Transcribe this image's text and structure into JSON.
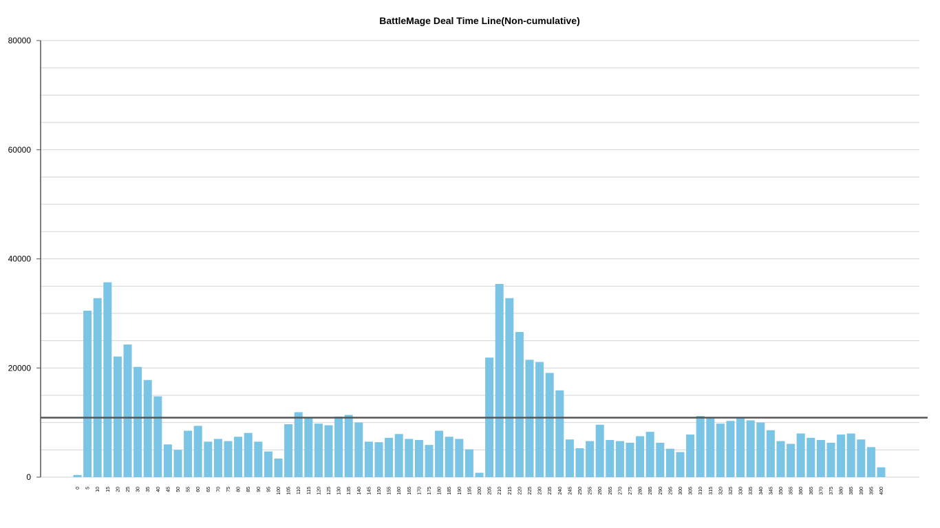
{
  "chart_data": {
    "type": "bar",
    "title": "BattleMage Deal Time Line(Non-cumulative)",
    "xlabel": "",
    "ylabel": "",
    "ylim": [
      0,
      80000
    ],
    "yticks": [
      0,
      20000,
      40000,
      60000,
      80000
    ],
    "grid": true,
    "bar_color": "#7AC4E6",
    "reference_line": {
      "value": 10900,
      "color": "#555555"
    },
    "categories": [
      "0",
      "5",
      "10",
      "15",
      "20",
      "25",
      "30",
      "35",
      "40",
      "45",
      "50",
      "55",
      "60",
      "65",
      "70",
      "75",
      "80",
      "85",
      "90",
      "95",
      "100",
      "105",
      "110",
      "115",
      "120",
      "125",
      "130",
      "135",
      "140",
      "145",
      "150",
      "155",
      "160",
      "165",
      "170",
      "175",
      "180",
      "185",
      "190",
      "195",
      "200",
      "205",
      "210",
      "215",
      "220",
      "225",
      "230",
      "235",
      "240",
      "245",
      "250",
      "255",
      "260",
      "265",
      "270",
      "275",
      "280",
      "285",
      "290",
      "295",
      "300",
      "305",
      "310",
      "315",
      "320",
      "325",
      "330",
      "335",
      "340",
      "345",
      "350",
      "355",
      "360",
      "365",
      "370",
      "375",
      "380",
      "385",
      "390",
      "395",
      "400"
    ],
    "values": [
      400,
      30500,
      32800,
      35700,
      22100,
      24300,
      20200,
      17800,
      14800,
      6000,
      5000,
      8500,
      9400,
      6500,
      7000,
      6600,
      7400,
      8100,
      6500,
      4700,
      3400,
      9700,
      11900,
      11000,
      9800,
      9500,
      11100,
      11400,
      10000,
      6500,
      6400,
      7200,
      7900,
      7000,
      6800,
      5900,
      8500,
      7400,
      7000,
      5100,
      800,
      21900,
      35400,
      32800,
      26600,
      21500,
      21100,
      19100,
      15900,
      6900,
      5300,
      6600,
      9600,
      6800,
      6600,
      6300,
      7500,
      8300,
      6300,
      5200,
      4600,
      7800,
      11200,
      10900,
      9800,
      10300,
      11000,
      10400,
      10000,
      8600,
      6600,
      6100,
      8000,
      7200,
      6800,
      6300,
      7800,
      8000,
      6900,
      5500,
      1800
    ]
  }
}
